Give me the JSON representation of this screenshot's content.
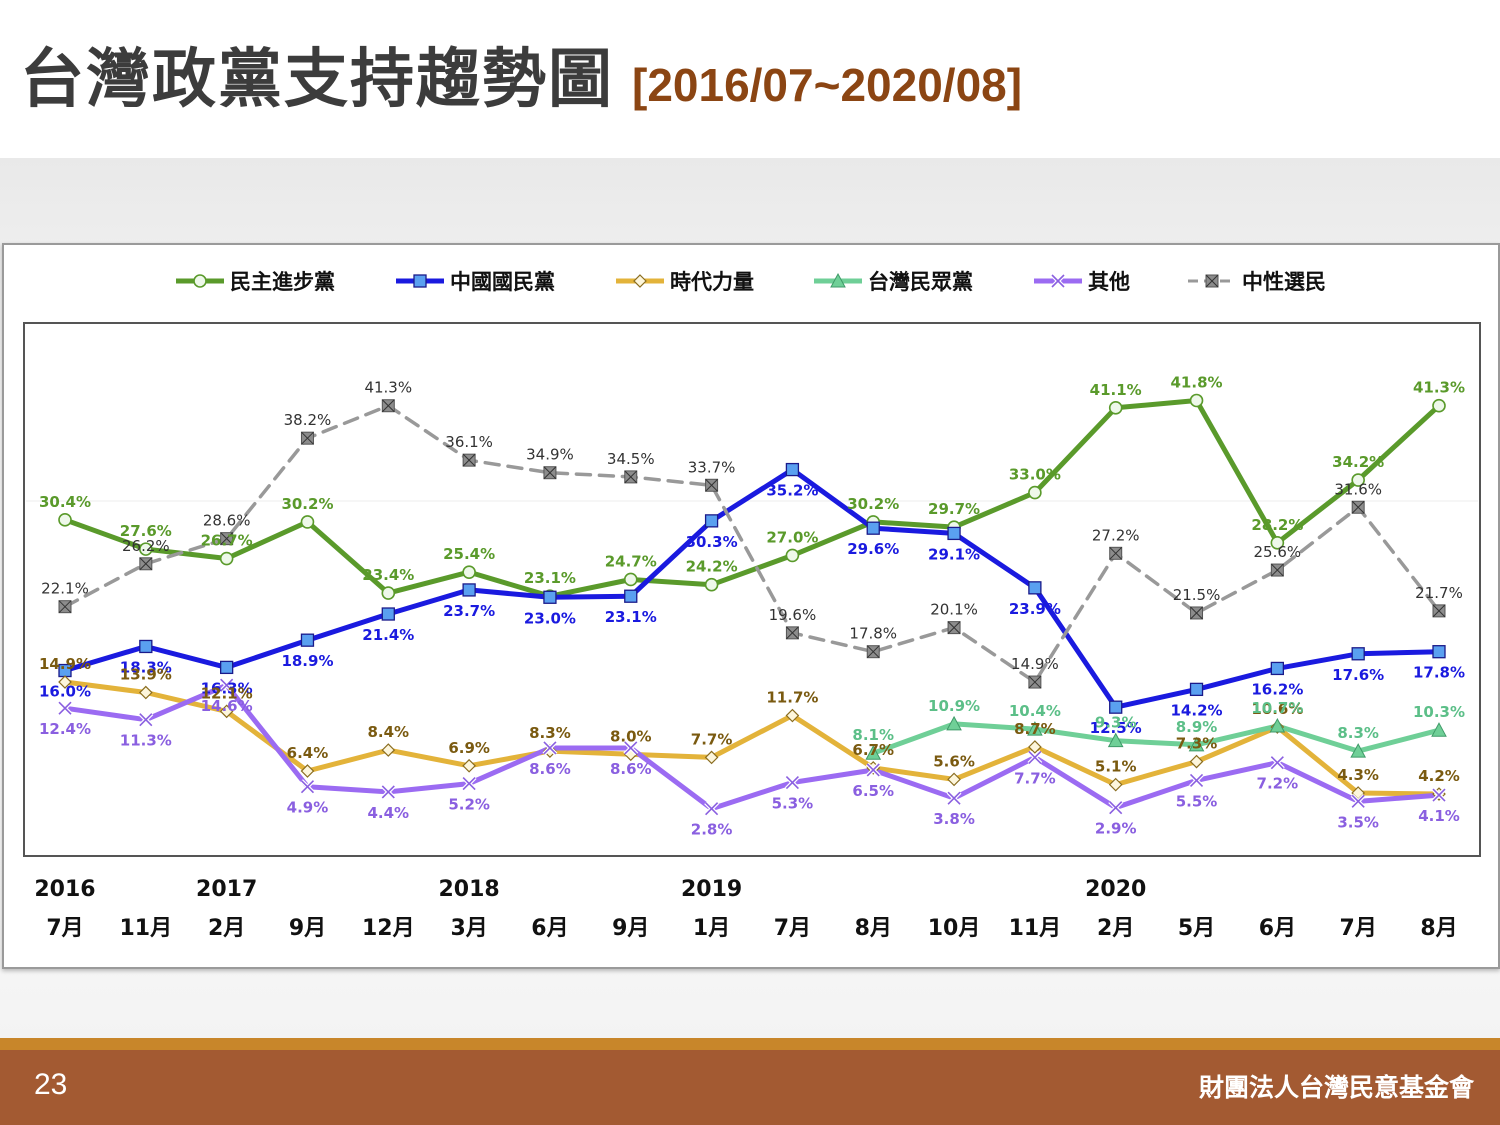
{
  "slide": {
    "title": "台灣政黨支持趨勢圖",
    "title_range": "[2016/07~2020/08]",
    "page_number": "23",
    "organization": "財團法人台灣民意基金會"
  },
  "chart_data": {
    "type": "line",
    "title": "",
    "xlabel": "",
    "ylabel": "",
    "ylim": [
      0,
      45
    ],
    "grid": false,
    "legend_position": "top",
    "categories": [
      "7月",
      "11月",
      "2月",
      "9月",
      "12月",
      "3月",
      "6月",
      "9月",
      "1月",
      "7月",
      "8月",
      "10月",
      "11月",
      "2月",
      "5月",
      "6月",
      "7月",
      "8月"
    ],
    "years": [
      {
        "label": "2016",
        "index": 0
      },
      {
        "label": "2017",
        "index": 2
      },
      {
        "label": "2018",
        "index": 5
      },
      {
        "label": "2019",
        "index": 8
      },
      {
        "label": "2020",
        "index": 13
      }
    ],
    "series": [
      {
        "name": "民主進步黨",
        "color": "#5a9a2b",
        "marker": "circle",
        "dashed": false,
        "values": [
          30.4,
          27.6,
          26.7,
          30.2,
          23.4,
          25.4,
          23.1,
          24.7,
          24.2,
          27.0,
          30.2,
          29.7,
          33.0,
          41.1,
          41.8,
          28.2,
          34.2,
          41.3
        ],
        "labels": [
          "30.4%",
          "27.6%",
          "26.7%",
          "30.2%",
          "23.4%",
          "25.4%",
          "23.1%",
          "24.7%",
          "24.2%",
          "27.0%",
          "30.2%",
          "29.7%",
          "33.0%",
          "41.1%",
          "41.8%",
          "28.2%",
          "34.2%",
          "41.3%"
        ]
      },
      {
        "name": "中國國民黨",
        "color": "#1a1adf",
        "marker": "square",
        "dashed": false,
        "values": [
          16.0,
          18.3,
          16.3,
          18.9,
          21.4,
          23.7,
          23.0,
          23.1,
          30.3,
          35.2,
          29.6,
          29.1,
          23.9,
          12.5,
          14.2,
          16.2,
          17.6,
          17.8
        ],
        "labels": [
          "16.0%",
          "18.3%",
          "16.3%",
          "18.9%",
          "21.4%",
          "23.7%",
          "23.0%",
          "23.1%",
          "30.3%",
          "35.2%",
          "29.6%",
          "29.1%",
          "23.9%",
          "12.5%",
          "14.2%",
          "16.2%",
          "17.6%",
          "17.8%"
        ]
      },
      {
        "name": "時代力量",
        "color": "#e3b33a",
        "marker": "diamond",
        "dashed": false,
        "values": [
          14.9,
          13.9,
          12.1,
          6.4,
          8.4,
          6.9,
          8.3,
          8.0,
          7.7,
          11.7,
          6.7,
          5.6,
          8.7,
          5.1,
          7.3,
          10.6,
          4.3,
          4.2
        ],
        "labels": [
          "14.9%",
          "13.9%",
          "12.1%",
          "6.4%",
          "8.4%",
          "6.9%",
          "8.3%",
          "8.0%",
          "7.7%",
          "11.7%",
          "6.7%",
          "5.6%",
          "8.7%",
          "5.1%",
          "7.3%",
          "10.6%",
          "4.3%",
          "4.2%"
        ]
      },
      {
        "name": "台灣民眾黨",
        "color": "#6fcf97",
        "marker": "triangle",
        "dashed": false,
        "values": [
          null,
          null,
          null,
          null,
          null,
          null,
          null,
          null,
          null,
          null,
          8.1,
          10.9,
          10.4,
          9.3,
          8.9,
          10.7,
          8.3,
          10.3
        ],
        "labels": [
          "",
          "",
          "",
          "",
          "",
          "",
          "",
          "",
          "",
          "",
          "8.1%",
          "10.9%",
          "10.4%",
          "9.3%",
          "8.9%",
          "10.7%",
          "8.3%",
          "10.3%"
        ]
      },
      {
        "name": "其他",
        "color": "#9b6bf2",
        "marker": "x",
        "dashed": false,
        "values": [
          12.4,
          11.3,
          14.6,
          4.9,
          4.4,
          5.2,
          8.6,
          8.6,
          2.8,
          5.3,
          6.5,
          3.8,
          7.7,
          2.9,
          5.5,
          7.2,
          3.5,
          4.1
        ],
        "labels": [
          "12.4%",
          "11.3%",
          "14.6%",
          "4.9%",
          "4.4%",
          "5.2%",
          "8.6%",
          "8.6%",
          "2.8%",
          "5.3%",
          "6.5%",
          "3.8%",
          "7.7%",
          "2.9%",
          "5.5%",
          "7.2%",
          "3.5%",
          "4.1%"
        ]
      },
      {
        "name": "中性選民",
        "color": "#999999",
        "marker": "xsquare",
        "dashed": true,
        "values": [
          22.1,
          26.2,
          28.6,
          38.2,
          41.3,
          36.1,
          34.9,
          34.5,
          33.7,
          19.6,
          17.8,
          20.1,
          14.9,
          27.2,
          21.5,
          25.6,
          31.6,
          21.7
        ],
        "labels": [
          "22.1%",
          "26.2%",
          "28.6%",
          "38.2%",
          "41.3%",
          "36.1%",
          "34.9%",
          "34.5%",
          "33.7%",
          "19.6%",
          "17.8%",
          "20.1%",
          "14.9%",
          "27.2%",
          "21.5%",
          "25.6%",
          "31.6%",
          "21.7%"
        ]
      }
    ]
  }
}
